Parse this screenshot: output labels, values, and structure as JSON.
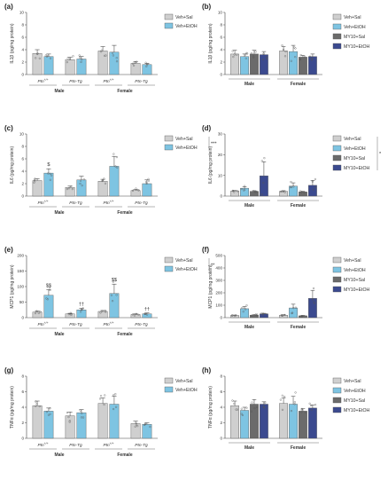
{
  "colors": {
    "Veh+Sal": "#cfcfcf",
    "Veh+EtOH": "#7ec4e2",
    "MY10+Sal": "#6b6b6b",
    "MY10+EtOH": "#3b4a8f",
    "axis": "#444444"
  },
  "chart_data": [
    {
      "panel": "(a)",
      "type": "bar",
      "ylabel": "IL1β (pg/mg protein)",
      "ylim": [
        0,
        10
      ],
      "yticks": [
        0,
        2,
        4,
        6,
        8,
        10
      ],
      "groups": [
        "Ptn+/+",
        "Ptn-Tg",
        "Ptn+/+",
        "Ptn-Tg"
      ],
      "sexes": [
        "Male",
        "Female"
      ],
      "series": [
        {
          "name": "Veh+Sal",
          "values": [
            3.4,
            2.4,
            3.8,
            1.8
          ],
          "errors": [
            0.6,
            0.4,
            0.7,
            0.3
          ]
        },
        {
          "name": "Veh+EtOH",
          "values": [
            2.9,
            2.5,
            3.6,
            1.6
          ],
          "errors": [
            0.4,
            0.4,
            1.1,
            0.2
          ]
        }
      ],
      "annotations": []
    },
    {
      "panel": "(b)",
      "type": "bar",
      "ylabel": "IL1β (pg/mg protein)",
      "ylim": [
        0,
        10
      ],
      "yticks": [
        0,
        2,
        4,
        6,
        8,
        10
      ],
      "groups": [
        "",
        ""
      ],
      "sexes": [
        "Male",
        "Female"
      ],
      "series": [
        {
          "name": "Veh+Sal",
          "values": [
            3.3,
            3.8
          ],
          "errors": [
            0.6,
            0.7
          ]
        },
        {
          "name": "Veh+EtOH",
          "values": [
            2.9,
            3.7
          ],
          "errors": [
            0.4,
            1.0
          ]
        },
        {
          "name": "MY10+Sal",
          "values": [
            3.3,
            2.8
          ],
          "errors": [
            0.6,
            0.3
          ]
        },
        {
          "name": "MY10+EtOH",
          "values": [
            3.2,
            2.9
          ],
          "errors": [
            0.5,
            0.4
          ]
        }
      ],
      "annotations": []
    },
    {
      "panel": "(c)",
      "type": "bar",
      "ylabel": "IL6 (pg/mg protein)",
      "ylim": [
        0,
        10
      ],
      "yticks": [
        0,
        2,
        4,
        6,
        8,
        10
      ],
      "groups": [
        "Ptn+/+",
        "Ptn-Tg",
        "Ptn+/+",
        "Ptn-Tg"
      ],
      "sexes": [
        "Male",
        "Female"
      ],
      "series": [
        {
          "name": "Veh+Sal",
          "values": [
            2.5,
            1.4,
            2.4,
            0.9
          ],
          "errors": [
            0.3,
            0.2,
            0.3,
            0.2
          ]
        },
        {
          "name": "Veh+EtOH",
          "values": [
            3.7,
            2.6,
            4.8,
            2.0
          ],
          "errors": [
            0.7,
            0.6,
            1.6,
            0.6
          ]
        }
      ],
      "annotations": [
        {
          "text": "$",
          "series": "Veh+EtOH",
          "group": 0
        },
        {
          "text": "***",
          "where": "legend"
        }
      ]
    },
    {
      "panel": "(d)",
      "type": "bar",
      "ylabel": "IL6 (pg/mg protein)",
      "ylim": [
        0,
        30
      ],
      "yticks": [
        0,
        10,
        20,
        30
      ],
      "groups": [
        "",
        ""
      ],
      "sexes": [
        "Male",
        "Female"
      ],
      "series": [
        {
          "name": "Veh+Sal",
          "values": [
            2.4,
            2.3
          ],
          "errors": [
            0.3,
            0.3
          ]
        },
        {
          "name": "Veh+EtOH",
          "values": [
            3.8,
            4.8
          ],
          "errors": [
            0.7,
            1.6
          ]
        },
        {
          "name": "MY10+Sal",
          "values": [
            2.3,
            2.0
          ],
          "errors": [
            0.3,
            0.3
          ]
        },
        {
          "name": "MY10+EtOH",
          "values": [
            9.8,
            5.2
          ],
          "errors": [
            6.8,
            2.4
          ]
        }
      ],
      "annotations": [
        {
          "text": "*",
          "where": "legend"
        }
      ]
    },
    {
      "panel": "(e)",
      "type": "bar",
      "ylabel": "MCP1 (pg/mg protein)",
      "ylim": [
        0,
        200
      ],
      "yticks": [
        0,
        50,
        100,
        150,
        200
      ],
      "groups": [
        "Ptn+/+",
        "Ptn-Tg",
        "Ptn+/+",
        "Ptn-Tg"
      ],
      "sexes": [
        "Male",
        "Female"
      ],
      "series": [
        {
          "name": "Veh+Sal",
          "values": [
            18,
            12,
            20,
            10
          ],
          "errors": [
            3,
            2,
            3,
            2
          ]
        },
        {
          "name": "Veh+EtOH",
          "values": [
            72,
            25,
            78,
            12
          ],
          "errors": [
            18,
            5,
            30,
            3
          ]
        }
      ],
      "annotations": [
        {
          "text": "$$",
          "series": "Veh+EtOH",
          "group": 0
        },
        {
          "text": "$$",
          "series": "Veh+EtOH",
          "group": 2
        },
        {
          "text": "††",
          "series": "Veh+EtOH",
          "group": 1
        },
        {
          "text": "††",
          "series": "Veh+EtOH",
          "group": 3
        },
        {
          "text": "**",
          "where": "legend"
        }
      ]
    },
    {
      "panel": "(f)",
      "type": "bar",
      "ylabel": "MCP1 (pg/mg protein)",
      "ylim": [
        0,
        500
      ],
      "yticks": [
        0,
        100,
        200,
        300,
        400,
        500
      ],
      "groups": [
        "",
        ""
      ],
      "sexes": [
        "Male",
        "Female"
      ],
      "series": [
        {
          "name": "Veh+Sal",
          "values": [
            18,
            20
          ],
          "errors": [
            3,
            3
          ]
        },
        {
          "name": "Veh+EtOH",
          "values": [
            72,
            78
          ],
          "errors": [
            18,
            30
          ]
        },
        {
          "name": "MY10+Sal",
          "values": [
            20,
            15
          ],
          "errors": [
            4,
            3
          ]
        },
        {
          "name": "MY10+EtOH",
          "values": [
            30,
            155
          ],
          "errors": [
            5,
            65
          ]
        }
      ],
      "annotations": []
    },
    {
      "panel": "(g)",
      "type": "bar",
      "ylabel": "TNFα (pg/mg protein)",
      "ylim": [
        0,
        8
      ],
      "yticks": [
        0,
        2,
        4,
        6,
        8
      ],
      "groups": [
        "Ptn+/+",
        "Ptn-Tg",
        "Ptn+/+",
        "Ptn-Tg"
      ],
      "sexes": [
        "Male",
        "Female"
      ],
      "series": [
        {
          "name": "Veh+Sal",
          "values": [
            4.2,
            2.9,
            4.5,
            1.9
          ],
          "errors": [
            0.6,
            0.5,
            0.7,
            0.3
          ]
        },
        {
          "name": "Veh+EtOH",
          "values": [
            3.5,
            3.3,
            4.4,
            1.8
          ],
          "errors": [
            0.4,
            0.4,
            1.0,
            0.2
          ]
        }
      ],
      "annotations": []
    },
    {
      "panel": "(h)",
      "type": "bar",
      "ylabel": "TNFα (pg/mg protein)",
      "ylim": [
        0,
        8
      ],
      "yticks": [
        0,
        2,
        4,
        6,
        8
      ],
      "groups": [
        "",
        ""
      ],
      "sexes": [
        "Male",
        "Female"
      ],
      "series": [
        {
          "name": "Veh+Sal",
          "values": [
            4.2,
            4.5
          ],
          "errors": [
            0.6,
            0.7
          ]
        },
        {
          "name": "Veh+EtOH",
          "values": [
            3.6,
            4.4
          ],
          "errors": [
            0.4,
            1.0
          ]
        },
        {
          "name": "MY10+Sal",
          "values": [
            4.4,
            3.5
          ],
          "errors": [
            0.6,
            0.3
          ]
        },
        {
          "name": "MY10+EtOH",
          "values": [
            4.4,
            3.9
          ],
          "errors": [
            0.3,
            0.4
          ]
        }
      ],
      "annotations": []
    }
  ]
}
